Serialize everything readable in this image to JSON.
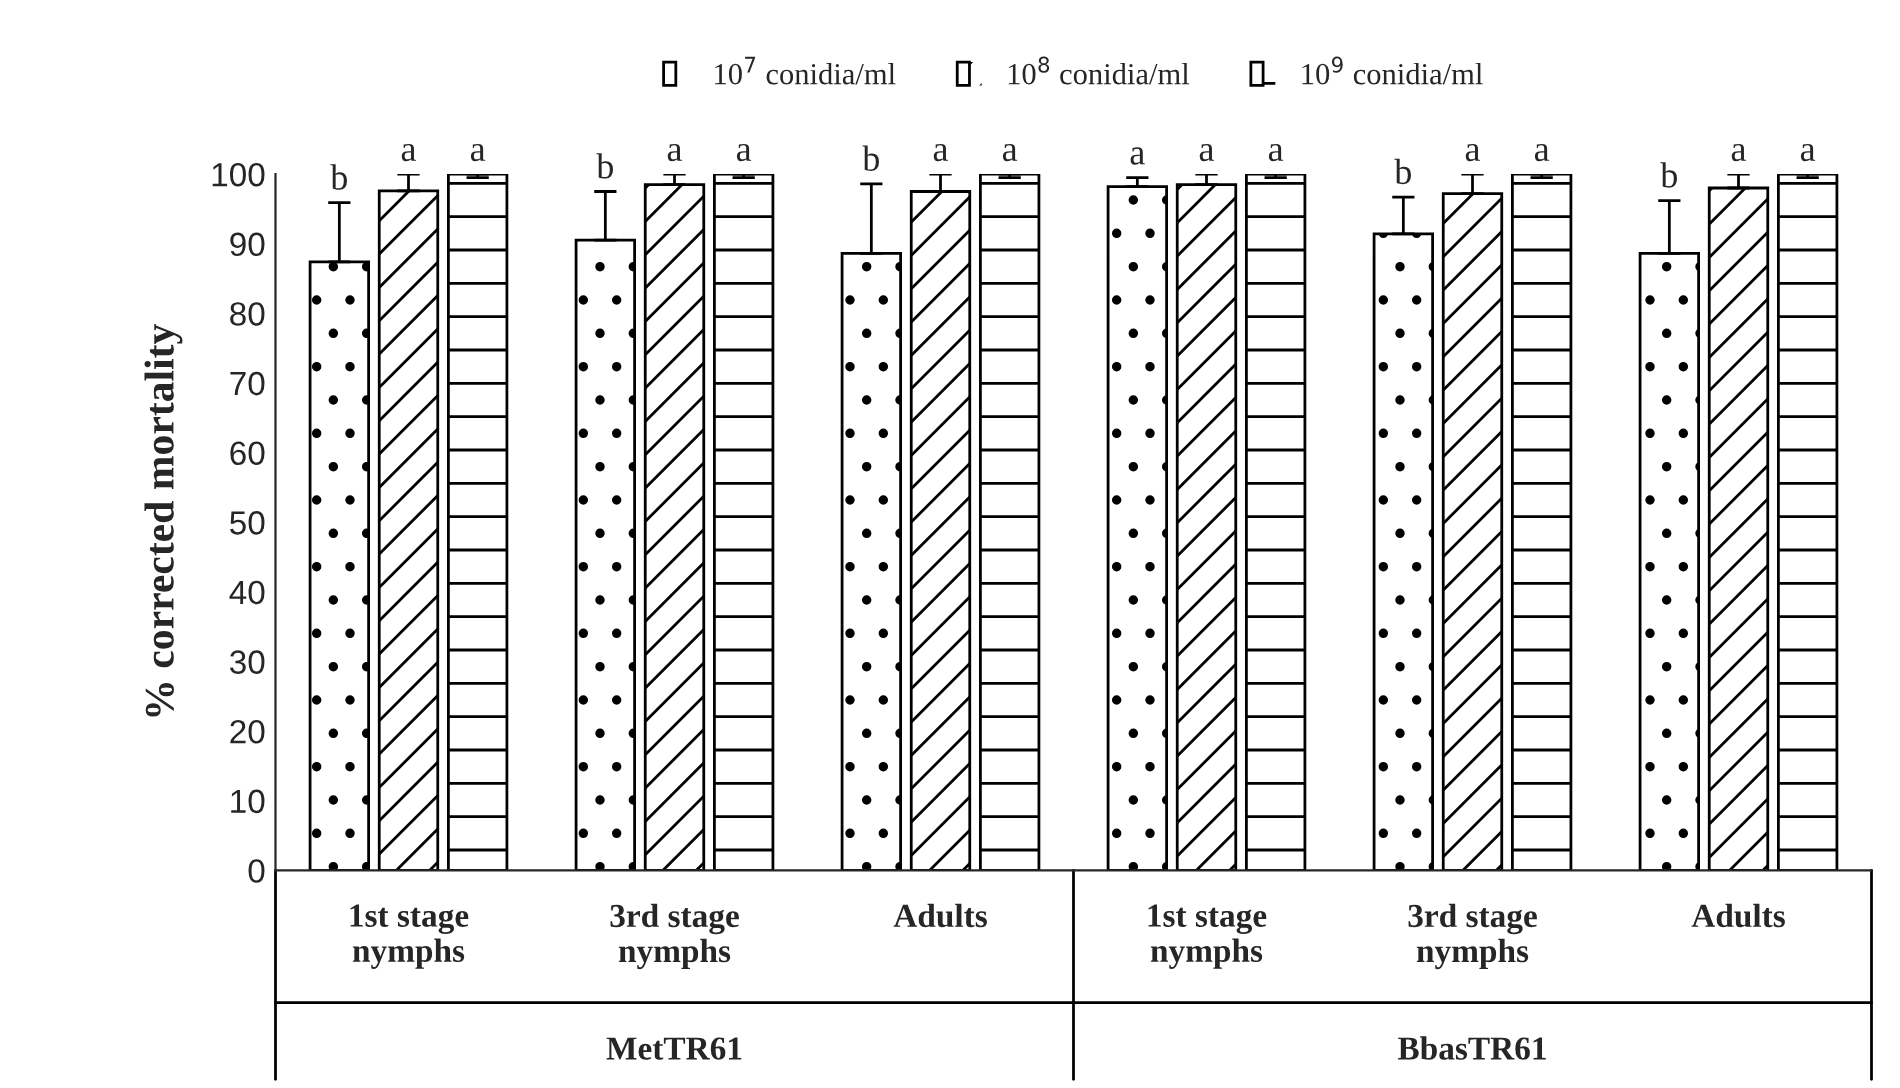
{
  "chart_data": {
    "type": "bar",
    "ylabel": "% corrected mortality",
    "categories": [
      "1st stage\nnymphs",
      "3rd stage\nnymphs",
      "Adults",
      "1st stage\nnymphs",
      "3rd stage\nnymphs",
      "Adults"
    ],
    "annotations": [
      "MetTR61",
      "BbasTR61"
    ],
    "series": [
      {
        "name": "10$^{7}$ conidia/ml",
        "color": "#ffffff",
        "values": [
          87.4,
          90.5,
          88.6,
          98.2,
          91.4,
          88.6
        ],
        "errors": [
          [
            87.4,
            95.9
          ],
          [
            90.5,
            97.5
          ],
          [
            88.6,
            98.6
          ],
          [
            98.2,
            99.5
          ],
          [
            91.4,
            96.7
          ],
          [
            88.6,
            96.2
          ]
        ],
        "value_labels": [
          "b",
          "b",
          "b",
          "a",
          "b",
          "b"
        ]
      },
      {
        "name": "10$^{8}$ conidia/ml",
        "color": "#ffffff",
        "values": [
          97.6,
          98.5,
          97.5,
          98.5,
          97.2,
          98.0
        ],
        "errors": [
          [
            97.6,
            100
          ],
          [
            98.5,
            100
          ],
          [
            97.5,
            100
          ],
          [
            98.5,
            100
          ],
          [
            97.2,
            100
          ],
          [
            98.0,
            100
          ]
        ],
        "value_labels": [
          "a",
          "a",
          "a",
          "a",
          "a",
          "a"
        ]
      },
      {
        "name": "10$^{9}$ conidia/ml",
        "color": "#ffffff",
        "values": [
          100,
          100,
          100,
          100,
          100,
          100
        ],
        "errors": [
          [
            99.5,
            100
          ],
          [
            99.5,
            100
          ],
          [
            99.5,
            100
          ],
          [
            99.5,
            100
          ],
          [
            99.5,
            100
          ],
          [
            99.5,
            100
          ]
        ],
        "value_labels": [
          "a",
          "a",
          "a",
          "a",
          "a",
          "a"
        ]
      }
    ],
    "ylim": [
      0,
      100
    ],
    "yticks": [
      0,
      10,
      20,
      30,
      40,
      50,
      60,
      70,
      80,
      90,
      100
    ],
    "grid": false,
    "legend": "top"
  }
}
